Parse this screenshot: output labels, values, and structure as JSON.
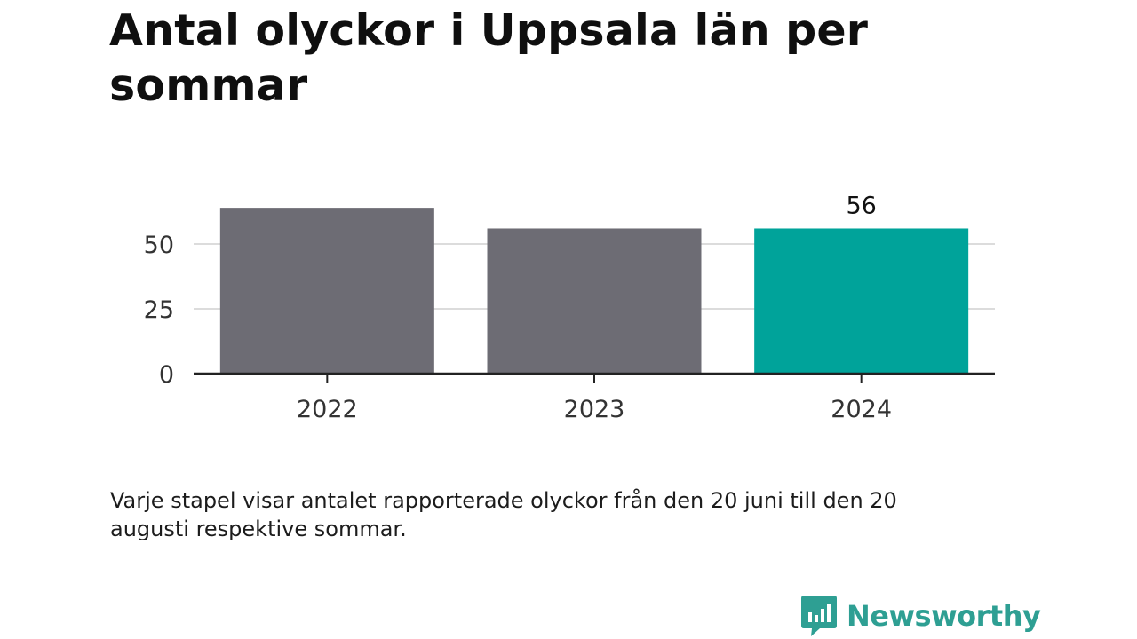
{
  "title": "Antal olyckor i Uppsala län per sommar",
  "note": "Varje stapel visar antalet rapporterade olyckor från den 20 juni till den 20 augusti respektive sommar.",
  "brand": {
    "name": "Newsworthy",
    "icon": "newsworthy-logo-icon",
    "color": "#2e9f93"
  },
  "chart_data": {
    "type": "bar",
    "categories": [
      "2022",
      "2023",
      "2024"
    ],
    "values": [
      64,
      56,
      56
    ],
    "colors": [
      "#6d6c74",
      "#6d6c74",
      "#00a39a"
    ],
    "data_labels": [
      "",
      "",
      "56"
    ],
    "yticks": [
      0,
      25,
      50
    ],
    "ylim": [
      0,
      66
    ],
    "grid": true,
    "legend": "none"
  }
}
